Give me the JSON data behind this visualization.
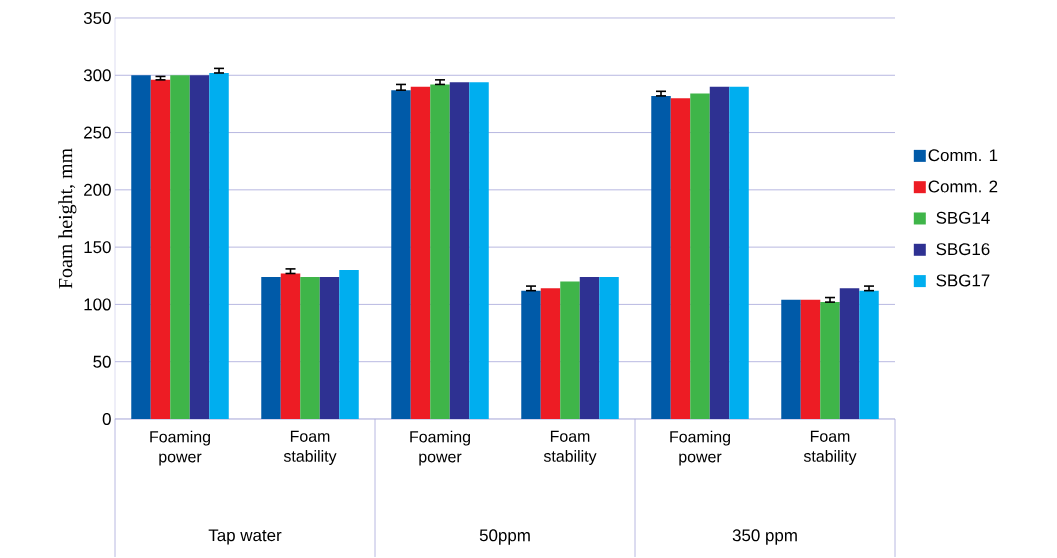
{
  "chart_data": {
    "type": "bar",
    "ylabel": "Foam height, mm",
    "categories": [
      "Foaming power",
      "Foam stability",
      "Foaming power",
      "Foam stability",
      "Foaming power",
      "Foam stability"
    ],
    "annotations": [
      "Tap water",
      "50ppm",
      "350 ppm"
    ],
    "series": [
      {
        "name": "Comm. 1",
        "color": "#005aa8",
        "values": [
          300,
          124,
          287,
          112,
          282,
          104
        ],
        "errors": [
          null,
          null,
          [
            287,
            292
          ],
          [
            112,
            116
          ],
          [
            282,
            286
          ],
          null
        ]
      },
      {
        "name": "Comm. 2",
        "color": "#ed1c24",
        "values": [
          296,
          127,
          290,
          114,
          280,
          104
        ],
        "errors": [
          [
            296,
            299
          ],
          [
            127,
            131
          ],
          null,
          null,
          null,
          null
        ]
      },
      {
        "name": "SBG14",
        "color": "#3fb549",
        "values": [
          300,
          124,
          292,
          120,
          284,
          102
        ],
        "errors": [
          null,
          null,
          [
            292,
            296
          ],
          null,
          null,
          [
            102,
            106
          ]
        ]
      },
      {
        "name": "SBG16",
        "color": "#2e3192",
        "values": [
          300,
          124,
          294,
          124,
          290,
          114
        ],
        "errors": [
          null,
          null,
          null,
          null,
          null,
          null
        ]
      },
      {
        "name": "SBG17",
        "color": "#00aeef",
        "values": [
          302,
          130,
          294,
          124,
          290,
          112
        ],
        "errors": [
          [
            302,
            306
          ],
          null,
          null,
          null,
          null,
          [
            112,
            116
          ]
        ]
      }
    ],
    "ylim": [
      0,
      350
    ],
    "yticks": [
      0,
      50,
      100,
      150,
      200,
      250,
      300,
      350
    ],
    "grid": "y",
    "legend": "right"
  }
}
